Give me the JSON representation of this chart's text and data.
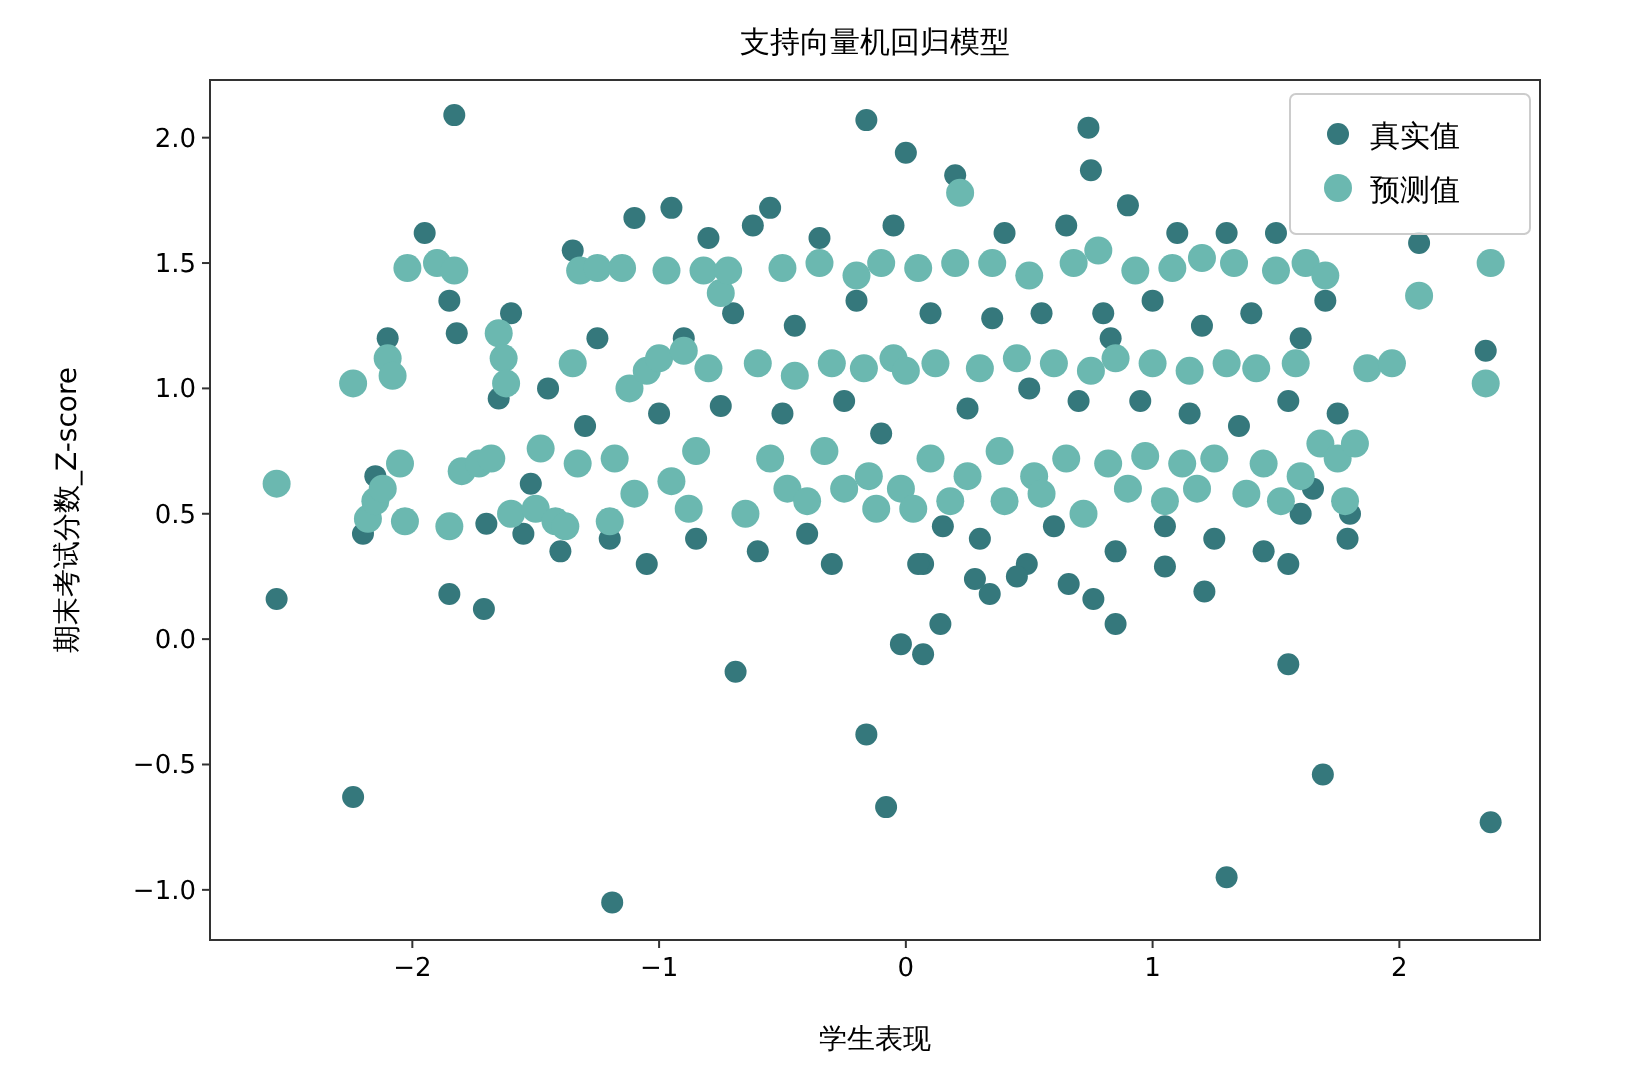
{
  "chart_data": {
    "type": "scatter",
    "title": "支持向量机回归模型",
    "xlabel": "学生表现",
    "ylabel": "期末考试分数_Z-score",
    "legend": "top right",
    "marker": "circle",
    "xlim": [
      -2.82,
      2.57
    ],
    "ylim": [
      -1.2,
      2.23
    ],
    "xticks": [
      {
        "value": -2,
        "label": "−2"
      },
      {
        "value": -1,
        "label": "−1"
      },
      {
        "value": 0,
        "label": "0"
      },
      {
        "value": 1,
        "label": "1"
      },
      {
        "value": 2,
        "label": "2"
      }
    ],
    "yticks": [
      {
        "value": -1,
        "label": "−1.0"
      },
      {
        "value": -0.5,
        "label": "−0.5"
      },
      {
        "value": 0,
        "label": "0.0"
      },
      {
        "value": 0.5,
        "label": "0.5"
      },
      {
        "value": 1,
        "label": "1.0"
      },
      {
        "value": 1.5,
        "label": "1.5"
      },
      {
        "value": 2,
        "label": "2.0"
      }
    ],
    "series": [
      {
        "name": "真实值",
        "color": "#35787c",
        "x": [
          -2.55,
          -2.24,
          -1.83,
          -1.85,
          -1.71,
          -1.19,
          -0.69,
          -0.16,
          -0.16,
          -0.08,
          0.0,
          -0.02,
          0.07,
          0.74,
          0.75,
          1.3,
          1.55,
          1.69,
          2.37,
          2.35,
          2.08,
          1.79,
          1.6,
          0.14,
          0.85,
          0.76,
          0.66,
          1.21,
          1.55,
          1.05,
          0.34,
          0.28,
          0.07,
          0.49,
          -2.2,
          -2.15,
          -2.1,
          -1.95,
          -1.85,
          -1.82,
          -1.7,
          -1.65,
          -1.6,
          -1.55,
          -1.45,
          -1.4,
          -1.35,
          -1.3,
          -1.25,
          -1.2,
          -1.1,
          -1.05,
          -1.0,
          -0.95,
          -0.9,
          -0.85,
          -0.8,
          -0.75,
          -0.7,
          -0.6,
          -0.55,
          -0.5,
          -0.45,
          -0.4,
          -0.35,
          -0.3,
          -0.25,
          -0.2,
          -0.1,
          -0.05,
          0.05,
          0.1,
          0.15,
          0.2,
          0.25,
          0.3,
          0.35,
          0.4,
          0.45,
          0.5,
          0.55,
          0.6,
          0.65,
          0.7,
          0.8,
          0.85,
          0.9,
          0.95,
          1.0,
          1.05,
          1.1,
          1.15,
          1.2,
          1.25,
          1.3,
          1.35,
          1.4,
          1.45,
          1.5,
          1.55,
          1.6,
          1.65,
          1.7,
          1.75,
          1.8,
          0.83,
          -1.52,
          -0.62
        ],
        "values": [
          0.16,
          -0.63,
          2.09,
          0.18,
          0.12,
          -1.05,
          -0.13,
          2.07,
          -0.38,
          -0.67,
          1.94,
          -0.02,
          -0.06,
          2.04,
          1.87,
          -0.95,
          -0.1,
          -0.54,
          -0.73,
          1.15,
          1.58,
          0.4,
          0.5,
          0.06,
          0.06,
          0.16,
          0.22,
          0.19,
          0.3,
          0.29,
          0.18,
          0.24,
          0.3,
          0.3,
          0.42,
          0.65,
          1.2,
          1.62,
          1.35,
          1.22,
          0.46,
          0.96,
          1.3,
          0.42,
          1.0,
          0.35,
          1.55,
          0.85,
          1.2,
          0.4,
          1.68,
          0.3,
          0.9,
          1.72,
          1.2,
          0.4,
          1.6,
          0.93,
          1.3,
          0.35,
          1.72,
          0.9,
          1.25,
          0.42,
          1.6,
          0.3,
          0.95,
          1.35,
          0.82,
          1.65,
          0.3,
          1.3,
          0.45,
          1.85,
          0.92,
          0.4,
          1.28,
          1.62,
          0.25,
          1.0,
          1.3,
          0.45,
          1.65,
          0.95,
          1.3,
          0.35,
          1.73,
          0.95,
          1.35,
          0.45,
          1.62,
          0.9,
          1.25,
          0.4,
          1.62,
          0.85,
          1.3,
          0.35,
          1.62,
          0.95,
          1.2,
          0.6,
          1.35,
          0.9,
          0.5,
          1.2,
          0.62,
          1.65
        ]
      },
      {
        "name": "预测值",
        "color": "#6bb8b0",
        "x": [
          -2.55,
          -2.24,
          -2.18,
          -2.15,
          -2.12,
          -2.1,
          -2.08,
          -2.05,
          -2.03,
          -2.02,
          -1.9,
          -1.83,
          -1.85,
          -1.8,
          -1.73,
          -1.68,
          -1.65,
          -1.63,
          -1.62,
          -1.6,
          -1.5,
          -1.48,
          -1.42,
          -1.38,
          -1.35,
          -1.33,
          -1.32,
          -1.25,
          -1.2,
          -1.18,
          -1.15,
          -1.12,
          -1.1,
          -1.05,
          -1.0,
          -0.97,
          -0.95,
          -0.9,
          -0.88,
          -0.85,
          -0.82,
          -0.8,
          -0.75,
          -0.72,
          -0.65,
          -0.6,
          -0.55,
          -0.5,
          -0.48,
          -0.45,
          -0.4,
          -0.35,
          -0.33,
          -0.3,
          -0.25,
          -0.2,
          -0.17,
          -0.15,
          -0.12,
          -0.1,
          -0.05,
          -0.02,
          0.0,
          0.03,
          0.05,
          0.1,
          0.12,
          0.18,
          0.2,
          0.22,
          0.25,
          0.3,
          0.35,
          0.38,
          0.4,
          0.45,
          0.5,
          0.52,
          0.55,
          0.6,
          0.65,
          0.68,
          0.72,
          0.75,
          0.78,
          0.82,
          0.85,
          0.9,
          0.93,
          0.97,
          1.0,
          1.05,
          1.08,
          1.12,
          1.15,
          1.18,
          1.2,
          1.25,
          1.3,
          1.33,
          1.38,
          1.42,
          1.45,
          1.5,
          1.52,
          1.58,
          1.6,
          1.62,
          1.68,
          1.7,
          1.75,
          1.78,
          1.82,
          1.87,
          1.97,
          2.08,
          2.35,
          2.37
        ],
        "values": [
          0.62,
          1.02,
          0.48,
          0.55,
          0.6,
          1.12,
          1.05,
          0.7,
          0.47,
          1.48,
          1.5,
          1.47,
          0.45,
          0.67,
          0.7,
          0.72,
          1.22,
          1.12,
          1.02,
          0.5,
          0.52,
          0.76,
          0.47,
          0.45,
          1.1,
          0.7,
          1.47,
          1.48,
          0.47,
          0.72,
          1.48,
          1.0,
          0.58,
          1.07,
          1.12,
          1.47,
          0.63,
          1.15,
          0.52,
          0.75,
          1.47,
          1.08,
          1.38,
          1.47,
          0.5,
          1.1,
          0.72,
          1.48,
          0.6,
          1.05,
          0.55,
          1.5,
          0.75,
          1.1,
          0.6,
          1.45,
          1.08,
          0.65,
          0.52,
          1.5,
          1.12,
          0.6,
          1.07,
          0.52,
          1.48,
          0.72,
          1.1,
          0.55,
          1.5,
          1.78,
          0.65,
          1.08,
          1.5,
          0.75,
          0.55,
          1.12,
          1.45,
          0.65,
          0.58,
          1.1,
          0.72,
          1.5,
          0.5,
          1.07,
          1.55,
          0.7,
          1.12,
          0.6,
          1.47,
          0.73,
          1.1,
          0.55,
          1.48,
          0.7,
          1.07,
          0.6,
          1.52,
          0.72,
          1.1,
          1.5,
          0.58,
          1.08,
          0.7,
          1.47,
          0.55,
          1.1,
          0.65,
          1.5,
          0.78,
          1.45,
          0.72,
          0.55,
          0.78,
          1.08,
          1.1,
          1.37,
          1.02,
          1.5
        ]
      }
    ]
  }
}
